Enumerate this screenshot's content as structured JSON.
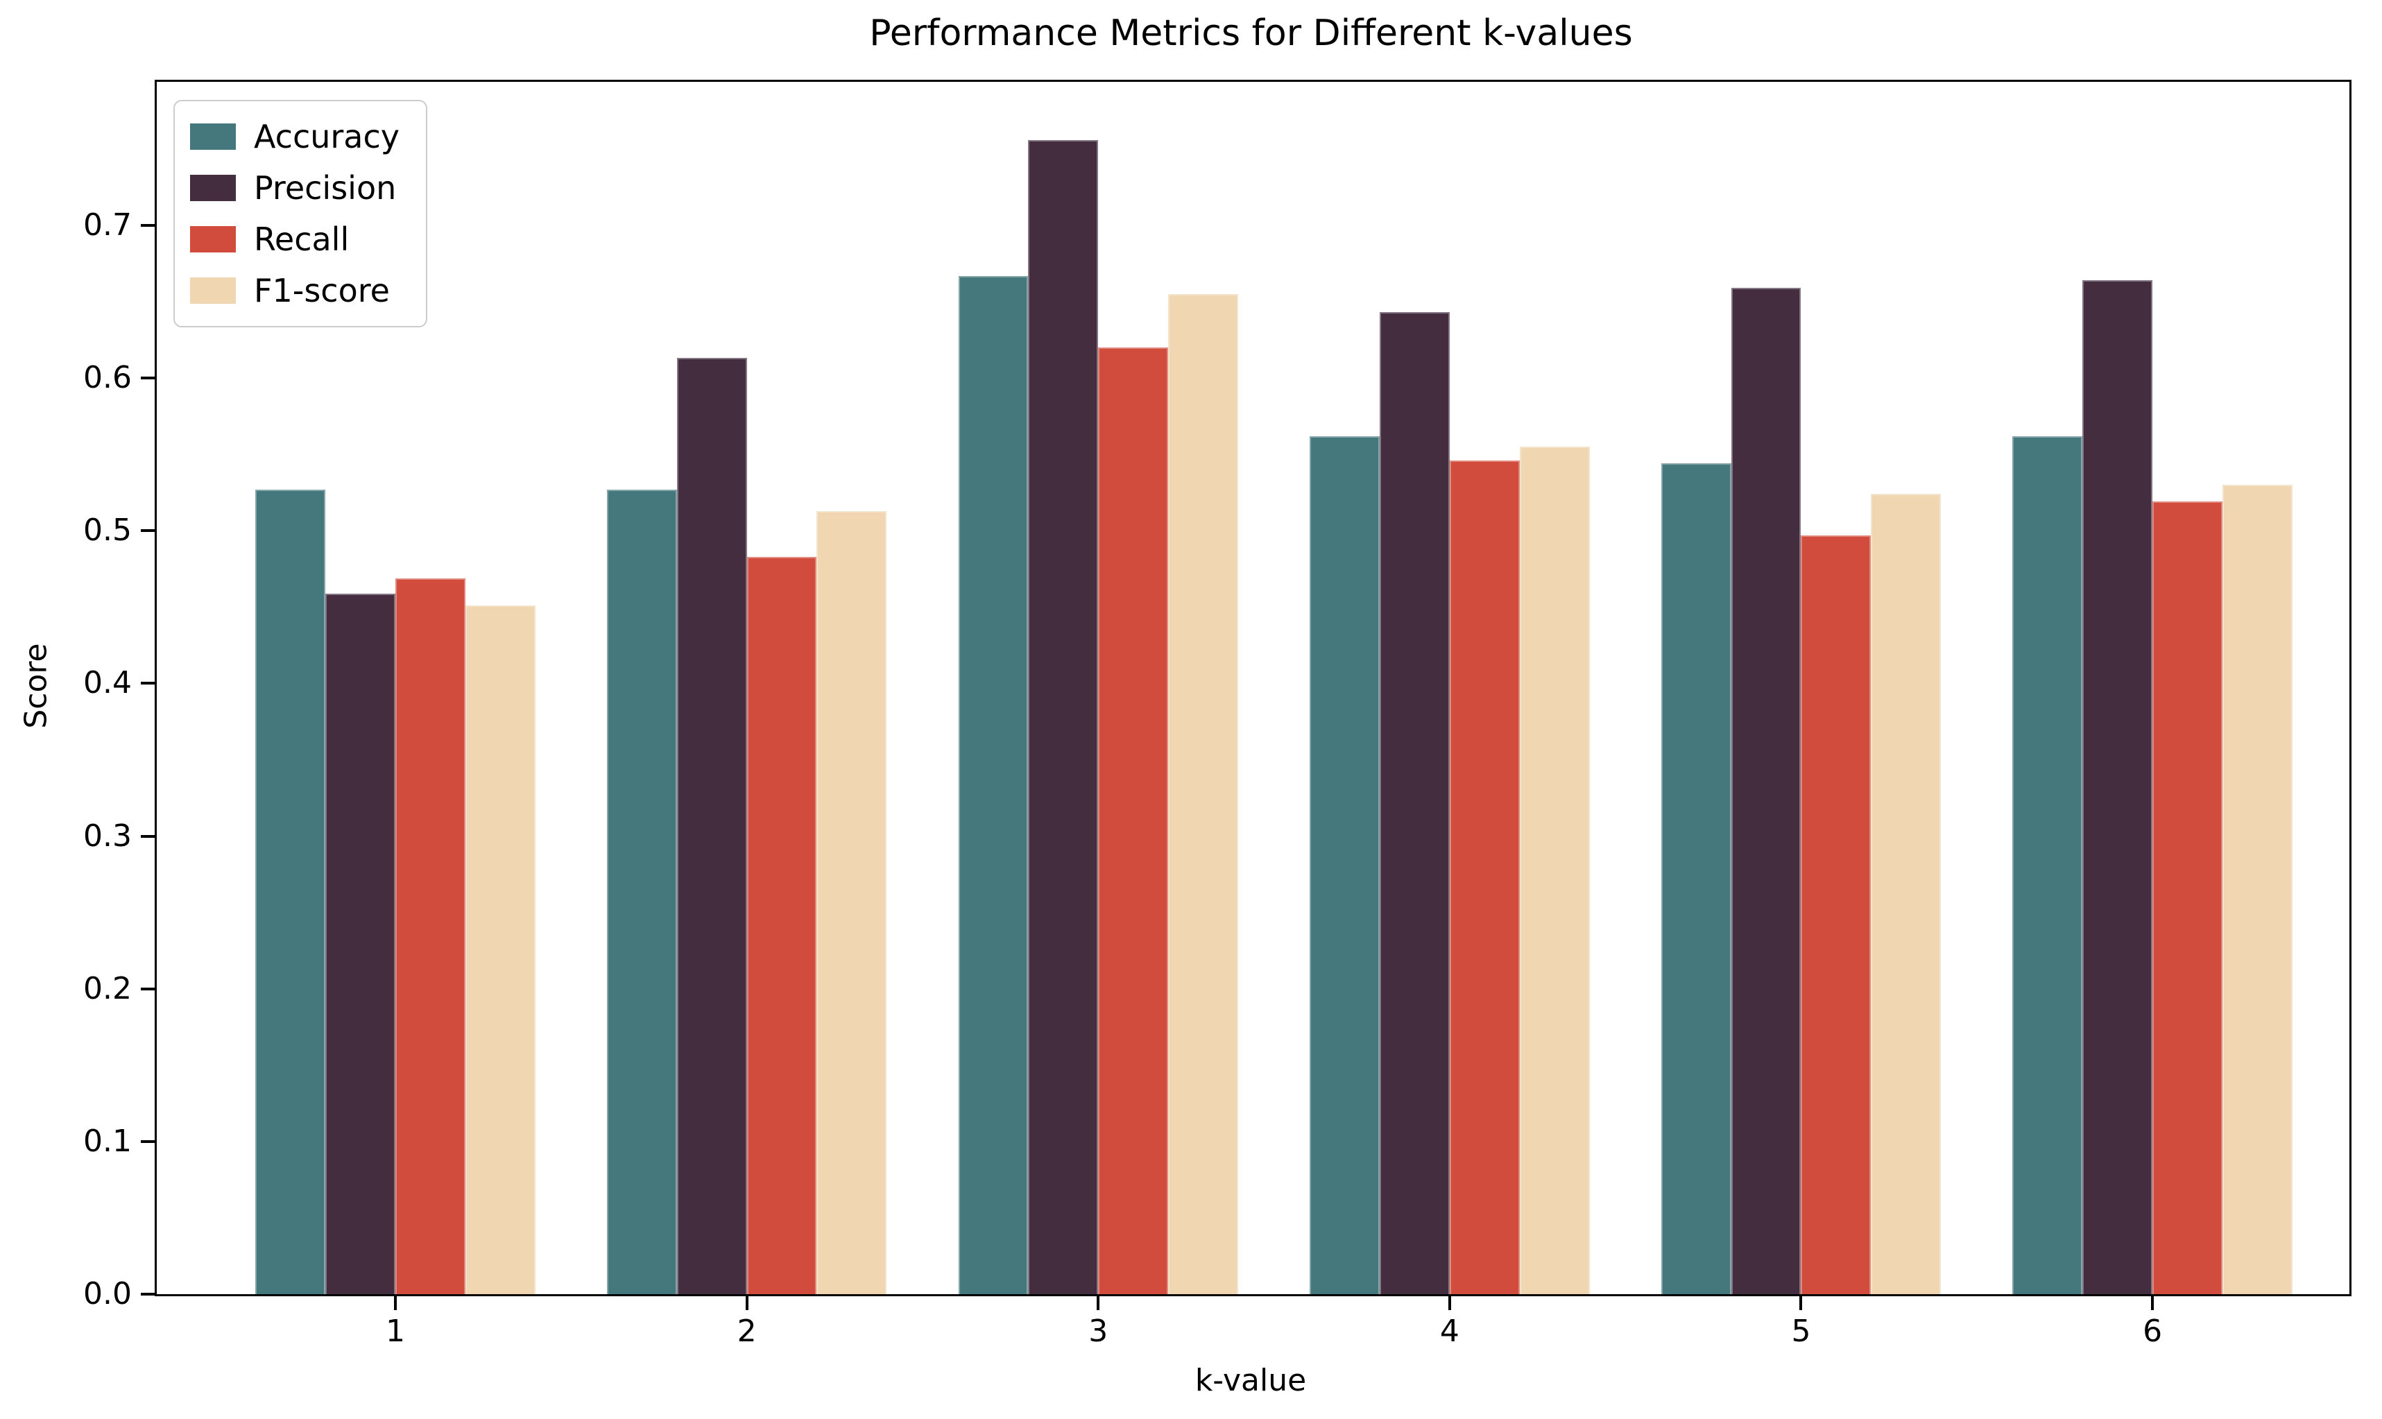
{
  "chart_data": {
    "type": "bar",
    "title": "Performance Metrics for Different k-values",
    "xlabel": "k-value",
    "ylabel": "Score",
    "categories": [
      "1",
      "2",
      "3",
      "4",
      "5",
      "6"
    ],
    "series": [
      {
        "name": "Accuracy",
        "color": "#44787C",
        "values": [
          0.527,
          0.527,
          0.667,
          0.562,
          0.544,
          0.562
        ]
      },
      {
        "name": "Precision",
        "color": "#432D3F",
        "values": [
          0.459,
          0.613,
          0.756,
          0.643,
          0.659,
          0.664
        ]
      },
      {
        "name": "Recall",
        "color": "#D14C3C",
        "values": [
          0.469,
          0.483,
          0.62,
          0.546,
          0.497,
          0.519
        ]
      },
      {
        "name": "F1-score",
        "color": "#F0D6B1",
        "values": [
          0.451,
          0.513,
          0.655,
          0.555,
          0.524,
          0.53
        ]
      }
    ],
    "ylim": [
      0,
      0.794
    ],
    "yticks": [
      "0.0",
      "0.1",
      "0.2",
      "0.3",
      "0.4",
      "0.5",
      "0.6",
      "0.7"
    ],
    "legend_position": "upper left",
    "grid": false,
    "axis_color": "#000000",
    "background_color": "#ffffff"
  }
}
